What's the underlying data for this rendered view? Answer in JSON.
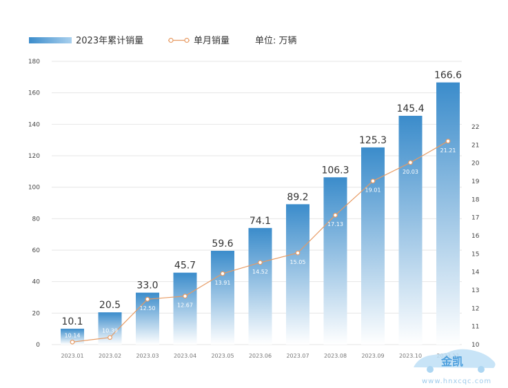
{
  "legend": {
    "cumulative_label": "2023年累计销量",
    "monthly_label": "单月销量",
    "unit_label": "单位: 万辆"
  },
  "watermark": {
    "logo_text": "金凯",
    "url": "www.hnxcqc.com"
  },
  "colors": {
    "bar_top": "#3b8ccb",
    "bar_bottom": "#ffffff",
    "line": "#e79a62",
    "grid": "#e6e6e6"
  },
  "chart_data": {
    "type": "bar",
    "title": "",
    "categories": [
      "2023.01",
      "2023.02",
      "2023.03",
      "2023.04",
      "2023.05",
      "2023.06",
      "2023.07",
      "2023.08",
      "2023.09",
      "2023.10",
      "2023.11"
    ],
    "series": [
      {
        "name": "2023年累计销量",
        "type": "bar",
        "axis": "left",
        "values": [
          10.1,
          20.5,
          33.0,
          45.7,
          59.6,
          74.1,
          89.2,
          106.3,
          125.3,
          145.4,
          166.6
        ],
        "labels": [
          "10.1",
          "20.5",
          "33.0",
          "45.7",
          "59.6",
          "74.1",
          "89.2",
          "106.3",
          "125.3",
          "145.4",
          "166.6"
        ]
      },
      {
        "name": "单月销量",
        "type": "line",
        "axis": "right",
        "values": [
          10.14,
          10.39,
          12.5,
          12.67,
          13.91,
          14.52,
          15.05,
          17.13,
          19.01,
          20.03,
          21.21
        ],
        "labels": [
          "10.14",
          "10.39",
          "12.50",
          "12.67",
          "13.91",
          "14.52",
          "15.05",
          "17.13",
          "19.01",
          "20.03",
          "21.21"
        ]
      }
    ],
    "y_left": {
      "min": 0,
      "max": 180,
      "ticks": [
        "0",
        "20",
        "40",
        "60",
        "80",
        "100",
        "120",
        "140",
        "160",
        "180"
      ]
    },
    "y_right": {
      "min": 10,
      "max": 22,
      "ticks": [
        "10",
        "11",
        "12",
        "13",
        "14",
        "15",
        "16",
        "17",
        "18",
        "19",
        "20",
        "21",
        "22"
      ]
    },
    "grid": true,
    "legend_position": "top-left"
  }
}
